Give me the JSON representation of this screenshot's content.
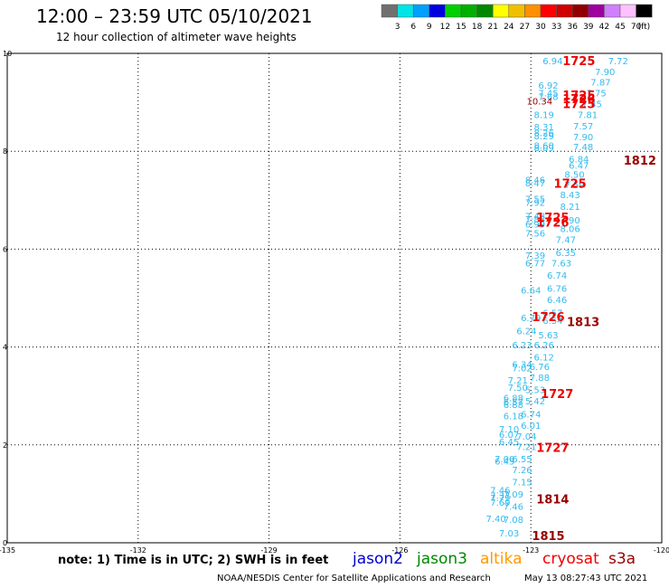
{
  "header": {
    "title": "12:00 – 23:59 UTC 05/10/2021",
    "subtitle": "12 hour collection of altimeter wave heights"
  },
  "colorbar": {
    "colors": [
      "#707070",
      "#00e5e5",
      "#00a0ff",
      "#0000e0",
      "#00d000",
      "#00b000",
      "#008800",
      "#ffff00",
      "#f0c000",
      "#ff9000",
      "#ff0000",
      "#d00000",
      "#900000",
      "#a000a0",
      "#d080ff",
      "#ffc0ff",
      "#000000"
    ],
    "labels": [
      "3",
      "6",
      "9",
      "12",
      "15",
      "18",
      "21",
      "24",
      "27",
      "30",
      "33",
      "36",
      "39",
      "42",
      "45",
      "70",
      "(ft)"
    ]
  },
  "satellites": [
    {
      "name": "jason2",
      "color": "#0000cc"
    },
    {
      "name": "jason3",
      "color": "#008800"
    },
    {
      "name": "altika",
      "color": "#ff9900"
    },
    {
      "name": "cryosat",
      "color": "#ee0000"
    },
    {
      "name": "s3a",
      "color": "#990000"
    }
  ],
  "footer": {
    "note": "note: 1) Time is in UTC; 2) SWH is in feet",
    "credit": "NOAA/NESDIS Center for Satellite Applications and Research",
    "timestamp": "May 13 08:27:43 UTC 2021"
  },
  "chart_data": {
    "type": "scatter",
    "title": "12:00 – 23:59 UTC 05/10/2021",
    "xlabel": "",
    "ylabel": "",
    "xlim": [
      -135,
      -120
    ],
    "ylim": [
      0,
      10
    ],
    "xticks": [
      -135,
      -132,
      -129,
      -126,
      -123,
      -120
    ],
    "yticks": [
      0,
      2,
      4,
      6,
      8,
      10
    ],
    "grid": true,
    "points": [
      {
        "lon": -122.5,
        "lat": 9.85,
        "v": "6.94",
        "c": "#33bbee"
      },
      {
        "lon": -121.0,
        "lat": 9.85,
        "v": "7.72",
        "c": "#33bbee"
      },
      {
        "lon": -121.3,
        "lat": 9.63,
        "v": "7.90",
        "c": "#33bbee"
      },
      {
        "lon": -121.4,
        "lat": 9.42,
        "v": "7.87",
        "c": "#33bbee"
      },
      {
        "lon": -122.6,
        "lat": 9.35,
        "v": "6.92",
        "c": "#33bbee"
      },
      {
        "lon": -121.5,
        "lat": 9.2,
        "v": "7.75",
        "c": "#33bbee"
      },
      {
        "lon": -122.6,
        "lat": 9.2,
        "v": "7.45",
        "c": "#33bbee"
      },
      {
        "lon": -122.6,
        "lat": 9.12,
        "v": "7.68",
        "c": "#33bbee"
      },
      {
        "lon": -121.6,
        "lat": 8.97,
        "v": "7.45",
        "c": "#33bbee"
      },
      {
        "lon": -122.8,
        "lat": 9.03,
        "v": "10.34",
        "c": "#990000"
      },
      {
        "lon": -122.7,
        "lat": 8.75,
        "v": "8.19",
        "c": "#33bbee"
      },
      {
        "lon": -121.7,
        "lat": 8.75,
        "v": "7.81",
        "c": "#33bbee"
      },
      {
        "lon": -121.8,
        "lat": 8.52,
        "v": "7.57",
        "c": "#33bbee"
      },
      {
        "lon": -122.7,
        "lat": 8.5,
        "v": "8.31",
        "c": "#33bbee"
      },
      {
        "lon": -122.7,
        "lat": 8.38,
        "v": "8.26",
        "c": "#33bbee"
      },
      {
        "lon": -122.7,
        "lat": 8.32,
        "v": "8.29",
        "c": "#33bbee"
      },
      {
        "lon": -121.8,
        "lat": 8.3,
        "v": "7.90",
        "c": "#33bbee"
      },
      {
        "lon": -121.8,
        "lat": 8.1,
        "v": "7.48",
        "c": "#33bbee"
      },
      {
        "lon": -122.7,
        "lat": 8.12,
        "v": "8.60",
        "c": "#33bbee"
      },
      {
        "lon": -122.7,
        "lat": 8.08,
        "v": "8.09",
        "c": "#33bbee"
      },
      {
        "lon": -121.9,
        "lat": 7.85,
        "v": "6.84",
        "c": "#33bbee"
      },
      {
        "lon": -121.9,
        "lat": 7.72,
        "v": "6.47",
        "c": "#33bbee"
      },
      {
        "lon": -122.0,
        "lat": 7.53,
        "v": "8.50",
        "c": "#33bbee"
      },
      {
        "lon": -122.0,
        "lat": 7.32,
        "v": "7.59",
        "c": "#33bbee"
      },
      {
        "lon": -122.9,
        "lat": 7.42,
        "v": "8.46",
        "c": "#33bbee"
      },
      {
        "lon": -122.9,
        "lat": 7.36,
        "v": "8.47",
        "c": "#33bbee"
      },
      {
        "lon": -122.1,
        "lat": 7.12,
        "v": "8.43",
        "c": "#33bbee"
      },
      {
        "lon": -122.9,
        "lat": 7.03,
        "v": "7.55",
        "c": "#33bbee"
      },
      {
        "lon": -122.9,
        "lat": 6.96,
        "v": "7.92",
        "c": "#33bbee"
      },
      {
        "lon": -122.1,
        "lat": 6.88,
        "v": "8.21",
        "c": "#33bbee"
      },
      {
        "lon": -122.9,
        "lat": 6.68,
        "v": "7.48",
        "c": "#33bbee"
      },
      {
        "lon": -122.9,
        "lat": 6.62,
        "v": "7.88",
        "c": "#33bbee"
      },
      {
        "lon": -122.1,
        "lat": 6.6,
        "v": "7.90",
        "c": "#33bbee"
      },
      {
        "lon": -122.9,
        "lat": 6.52,
        "v": "6.99",
        "c": "#33bbee"
      },
      {
        "lon": -122.1,
        "lat": 6.42,
        "v": "8.06",
        "c": "#33bbee"
      },
      {
        "lon": -122.9,
        "lat": 6.33,
        "v": "7.56",
        "c": "#33bbee"
      },
      {
        "lon": -122.2,
        "lat": 6.2,
        "v": "7.47",
        "c": "#33bbee"
      },
      {
        "lon": -122.2,
        "lat": 5.93,
        "v": "6.35",
        "c": "#33bbee"
      },
      {
        "lon": -122.9,
        "lat": 5.88,
        "v": "7.39",
        "c": "#33bbee"
      },
      {
        "lon": -122.3,
        "lat": 5.72,
        "v": "7.63",
        "c": "#33bbee"
      },
      {
        "lon": -122.9,
        "lat": 5.72,
        "v": "6.77",
        "c": "#33bbee"
      },
      {
        "lon": -122.4,
        "lat": 5.47,
        "v": "6.74",
        "c": "#33bbee"
      },
      {
        "lon": -122.4,
        "lat": 5.2,
        "v": "6.76",
        "c": "#33bbee"
      },
      {
        "lon": -123.0,
        "lat": 5.17,
        "v": "6.64",
        "c": "#33bbee"
      },
      {
        "lon": -122.4,
        "lat": 4.97,
        "v": "6.46",
        "c": "#33bbee"
      },
      {
        "lon": -122.5,
        "lat": 4.7,
        "v": "6.57",
        "c": "#33bbee"
      },
      {
        "lon": -123.0,
        "lat": 4.6,
        "v": "6.79",
        "c": "#33bbee"
      },
      {
        "lon": -122.5,
        "lat": 4.55,
        "v": "6.54",
        "c": "#33bbee"
      },
      {
        "lon": -123.1,
        "lat": 4.33,
        "v": "6.24",
        "c": "#33bbee"
      },
      {
        "lon": -122.6,
        "lat": 4.25,
        "v": "5.63",
        "c": "#33bbee"
      },
      {
        "lon": -123.2,
        "lat": 4.05,
        "v": "6.23",
        "c": "#33bbee"
      },
      {
        "lon": -122.7,
        "lat": 4.05,
        "v": "6.26",
        "c": "#33bbee"
      },
      {
        "lon": -122.7,
        "lat": 3.8,
        "v": "6.12",
        "c": "#33bbee"
      },
      {
        "lon": -123.2,
        "lat": 3.65,
        "v": "6.34",
        "c": "#33bbee"
      },
      {
        "lon": -122.8,
        "lat": 3.6,
        "v": "6.76",
        "c": "#33bbee"
      },
      {
        "lon": -123.2,
        "lat": 3.58,
        "v": "7.02",
        "c": "#33bbee"
      },
      {
        "lon": -122.8,
        "lat": 3.38,
        "v": "7.88",
        "c": "#33bbee"
      },
      {
        "lon": -123.3,
        "lat": 3.33,
        "v": "7.21",
        "c": "#33bbee"
      },
      {
        "lon": -123.3,
        "lat": 3.18,
        "v": "7.50",
        "c": "#33bbee"
      },
      {
        "lon": -122.9,
        "lat": 3.13,
        "v": "5.53",
        "c": "#33bbee"
      },
      {
        "lon": -123.4,
        "lat": 2.97,
        "v": "6.88",
        "c": "#33bbee"
      },
      {
        "lon": -122.9,
        "lat": 2.9,
        "v": "5.42",
        "c": "#33bbee"
      },
      {
        "lon": -123.4,
        "lat": 2.88,
        "v": "6.57",
        "c": "#33bbee"
      },
      {
        "lon": -123.4,
        "lat": 2.83,
        "v": "6.88",
        "c": "#33bbee"
      },
      {
        "lon": -123.0,
        "lat": 2.63,
        "v": "6.74",
        "c": "#33bbee"
      },
      {
        "lon": -123.4,
        "lat": 2.6,
        "v": "6.18",
        "c": "#33bbee"
      },
      {
        "lon": -123.0,
        "lat": 2.4,
        "v": "6.01",
        "c": "#33bbee"
      },
      {
        "lon": -123.5,
        "lat": 2.33,
        "v": "7.10",
        "c": "#33bbee"
      },
      {
        "lon": -123.5,
        "lat": 2.22,
        "v": "6.07",
        "c": "#33bbee"
      },
      {
        "lon": -123.1,
        "lat": 2.18,
        "v": "7.04",
        "c": "#33bbee"
      },
      {
        "lon": -123.5,
        "lat": 2.07,
        "v": "6.45",
        "c": "#33bbee"
      },
      {
        "lon": -123.1,
        "lat": 1.97,
        "v": "7.21",
        "c": "#33bbee"
      },
      {
        "lon": -123.6,
        "lat": 1.72,
        "v": "7.00",
        "c": "#33bbee"
      },
      {
        "lon": -123.2,
        "lat": 1.72,
        "v": "6.55",
        "c": "#33bbee"
      },
      {
        "lon": -123.6,
        "lat": 1.67,
        "v": "6.45",
        "c": "#33bbee"
      },
      {
        "lon": -123.2,
        "lat": 1.5,
        "v": "7.26",
        "c": "#33bbee"
      },
      {
        "lon": -123.2,
        "lat": 1.25,
        "v": "7.15",
        "c": "#33bbee"
      },
      {
        "lon": -123.7,
        "lat": 1.08,
        "v": "7.46",
        "c": "#33bbee"
      },
      {
        "lon": -123.4,
        "lat": 1.0,
        "v": "7.09",
        "c": "#33bbee"
      },
      {
        "lon": -123.7,
        "lat": 0.97,
        "v": "7.37",
        "c": "#33bbee"
      },
      {
        "lon": -123.7,
        "lat": 0.92,
        "v": "7.79",
        "c": "#33bbee"
      },
      {
        "lon": -123.7,
        "lat": 0.83,
        "v": "7.69",
        "c": "#33bbee"
      },
      {
        "lon": -123.4,
        "lat": 0.75,
        "v": "7.46",
        "c": "#33bbee"
      },
      {
        "lon": -123.8,
        "lat": 0.5,
        "v": "7.40",
        "c": "#33bbee"
      },
      {
        "lon": -123.4,
        "lat": 0.48,
        "v": "7.08",
        "c": "#33bbee"
      },
      {
        "lon": -123.5,
        "lat": 0.2,
        "v": "7.03",
        "c": "#33bbee"
      }
    ],
    "track_labels": [
      {
        "lon": -121.9,
        "lat": 9.85,
        "text": "1725",
        "c": "#ee0000"
      },
      {
        "lon": -121.9,
        "lat": 9.15,
        "text": "1725",
        "c": "#ee0000"
      },
      {
        "lon": -121.9,
        "lat": 9.08,
        "text": "1726",
        "c": "#ee0000"
      },
      {
        "lon": -121.9,
        "lat": 8.97,
        "text": "1725",
        "c": "#ee0000"
      },
      {
        "lon": -120.5,
        "lat": 7.82,
        "text": "1812",
        "c": "#990000"
      },
      {
        "lon": -122.1,
        "lat": 7.35,
        "text": "1725",
        "c": "#ee0000"
      },
      {
        "lon": -122.5,
        "lat": 6.65,
        "text": "1725",
        "c": "#ee0000"
      },
      {
        "lon": -122.5,
        "lat": 6.55,
        "text": "1726",
        "c": "#ee0000"
      },
      {
        "lon": -122.6,
        "lat": 4.62,
        "text": "1726",
        "c": "#ee0000"
      },
      {
        "lon": -121.8,
        "lat": 4.52,
        "text": "1813",
        "c": "#990000"
      },
      {
        "lon": -122.4,
        "lat": 3.05,
        "text": "1727",
        "c": "#ee0000"
      },
      {
        "lon": -122.5,
        "lat": 1.95,
        "text": "1727",
        "c": "#ee0000"
      },
      {
        "lon": -122.5,
        "lat": 0.9,
        "text": "1814",
        "c": "#990000"
      },
      {
        "lon": -122.6,
        "lat": 0.15,
        "text": "1815",
        "c": "#990000"
      }
    ]
  }
}
